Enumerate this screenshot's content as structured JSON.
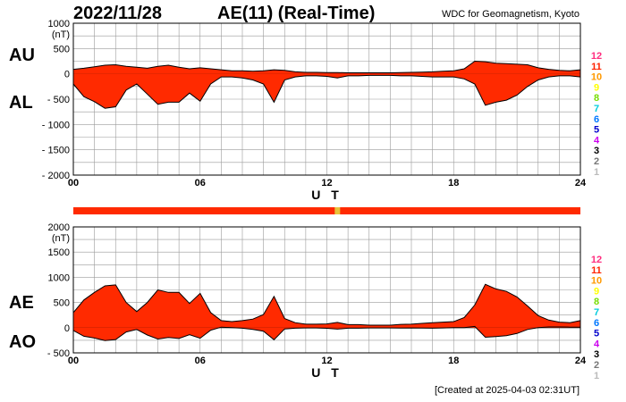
{
  "header": {
    "date": "2022/11/28",
    "index_name": "AE(11) (Real-Time)",
    "source": "WDC for Geomagnetism, Kyoto"
  },
  "footer": {
    "created": "[Created at 2025-04-03 02:31UT]"
  },
  "labels": {
    "au": "AU",
    "al": "AL",
    "ae": "AE",
    "ao": "AO"
  },
  "colors": {
    "fill": "#ff2a00",
    "outline": "#000000",
    "grid": "#9a9a9a",
    "status_bar": "#ff2a00",
    "status_marker": "#e8c23a"
  },
  "station_levels": [
    {
      "label": "12",
      "color": "#ff2d7f"
    },
    {
      "label": "11",
      "color": "#ff2200"
    },
    {
      "label": "10",
      "color": "#ff9900"
    },
    {
      "label": "9",
      "color": "#ffff00"
    },
    {
      "label": "8",
      "color": "#77dd00"
    },
    {
      "label": "7",
      "color": "#00ccdd"
    },
    {
      "label": "6",
      "color": "#0077ff"
    },
    {
      "label": "5",
      "color": "#0000cc"
    },
    {
      "label": "4",
      "color": "#cc00ee"
    },
    {
      "label": "3",
      "color": "#000000"
    },
    {
      "label": "2",
      "color": "#777777"
    },
    {
      "label": "1",
      "color": "#bbbbbb"
    }
  ],
  "chart_data": [
    {
      "type": "area",
      "panel": "AU/AL",
      "x_unit": "UT hours",
      "xlim": [
        0,
        24
      ],
      "x_ticks": [
        "00",
        "06",
        "12",
        "18",
        "24"
      ],
      "xlabel": "U T",
      "ylim": [
        -2000,
        1000
      ],
      "y_ticks": [
        "1000",
        "500",
        "0",
        "- 500",
        "- 1000",
        "- 1500",
        "- 2000"
      ],
      "y_unit_label": "(nT)",
      "grid": true,
      "series": [
        {
          "name": "AU",
          "x": [
            0,
            0.5,
            1,
            1.5,
            2,
            2.5,
            3,
            3.5,
            4,
            4.5,
            5,
            5.5,
            6,
            6.5,
            7,
            7.5,
            8,
            8.5,
            9,
            9.5,
            10,
            10.5,
            11,
            11.5,
            12,
            12.5,
            13,
            13.5,
            14,
            14.5,
            15,
            15.5,
            16,
            16.5,
            17,
            17.5,
            18,
            18.5,
            19,
            19.5,
            20,
            20.5,
            21,
            21.5,
            22,
            22.5,
            23,
            23.5,
            24
          ],
          "values": [
            90,
            110,
            140,
            170,
            180,
            150,
            130,
            110,
            150,
            170,
            130,
            100,
            120,
            100,
            80,
            60,
            60,
            50,
            60,
            80,
            70,
            40,
            30,
            30,
            25,
            25,
            20,
            20,
            20,
            20,
            20,
            25,
            30,
            35,
            40,
            50,
            60,
            100,
            250,
            240,
            210,
            200,
            190,
            180,
            120,
            90,
            70,
            60,
            80
          ]
        },
        {
          "name": "AL",
          "x": [
            0,
            0.5,
            1,
            1.5,
            2,
            2.5,
            3,
            3.5,
            4,
            4.5,
            5,
            5.5,
            6,
            6.5,
            7,
            7.5,
            8,
            8.5,
            9,
            9.5,
            10,
            10.5,
            11,
            11.5,
            12,
            12.5,
            13,
            13.5,
            14,
            14.5,
            15,
            15.5,
            16,
            16.5,
            17,
            17.5,
            18,
            18.5,
            19,
            19.5,
            20,
            20.5,
            21,
            21.5,
            22,
            22.5,
            23,
            23.5,
            24
          ],
          "values": [
            -200,
            -450,
            -550,
            -680,
            -650,
            -320,
            -200,
            -400,
            -600,
            -560,
            -560,
            -380,
            -540,
            -200,
            -60,
            -60,
            -80,
            -120,
            -200,
            -560,
            -120,
            -60,
            -40,
            -40,
            -50,
            -80,
            -40,
            -40,
            -30,
            -30,
            -30,
            -40,
            -40,
            -50,
            -60,
            -60,
            -60,
            -100,
            -200,
            -620,
            -560,
            -520,
            -420,
            -250,
            -120,
            -60,
            -40,
            -40,
            -60
          ]
        }
      ]
    },
    {
      "type": "area",
      "panel": "AE/AO",
      "x_unit": "UT hours",
      "xlim": [
        0,
        24
      ],
      "x_ticks": [
        "00",
        "06",
        "12",
        "18",
        "24"
      ],
      "xlabel": "U T",
      "ylim": [
        -500,
        2000
      ],
      "y_ticks": [
        "2000",
        "1500",
        "1000",
        "500",
        "0",
        "- 500"
      ],
      "y_unit_label": "(nT)",
      "grid": true,
      "series": [
        {
          "name": "AE",
          "x": [
            0,
            0.5,
            1,
            1.5,
            2,
            2.5,
            3,
            3.5,
            4,
            4.5,
            5,
            5.5,
            6,
            6.5,
            7,
            7.5,
            8,
            8.5,
            9,
            9.5,
            10,
            10.5,
            11,
            11.5,
            12,
            12.5,
            13,
            13.5,
            14,
            14.5,
            15,
            15.5,
            16,
            16.5,
            17,
            17.5,
            18,
            18.5,
            19,
            19.5,
            20,
            20.5,
            21,
            21.5,
            22,
            22.5,
            23,
            23.5,
            24
          ],
          "values": [
            300,
            550,
            700,
            830,
            850,
            500,
            320,
            500,
            750,
            700,
            700,
            480,
            680,
            300,
            140,
            120,
            140,
            170,
            260,
            620,
            180,
            100,
            70,
            70,
            75,
            105,
            60,
            60,
            50,
            50,
            50,
            65,
            70,
            85,
            100,
            110,
            120,
            200,
            450,
            860,
            770,
            720,
            610,
            430,
            240,
            150,
            110,
            100,
            140
          ]
        },
        {
          "name": "AO",
          "x": [
            0,
            0.5,
            1,
            1.5,
            2,
            2.5,
            3,
            3.5,
            4,
            4.5,
            5,
            5.5,
            6,
            6.5,
            7,
            7.5,
            8,
            8.5,
            9,
            9.5,
            10,
            10.5,
            11,
            11.5,
            12,
            12.5,
            13,
            13.5,
            14,
            14.5,
            15,
            15.5,
            16,
            16.5,
            17,
            17.5,
            18,
            18.5,
            19,
            19.5,
            20,
            20.5,
            21,
            21.5,
            22,
            22.5,
            23,
            23.5,
            24
          ],
          "values": [
            -55,
            -170,
            -205,
            -255,
            -235,
            -85,
            -35,
            -145,
            -225,
            -195,
            -215,
            -140,
            -210,
            -50,
            10,
            0,
            -10,
            -35,
            -70,
            -240,
            -25,
            -10,
            -5,
            -5,
            -12,
            -28,
            -10,
            -10,
            -5,
            -5,
            -5,
            -8,
            -5,
            -8,
            -10,
            -5,
            0,
            0,
            25,
            -190,
            -175,
            -160,
            -115,
            -35,
            0,
            15,
            15,
            10,
            10
          ]
        }
      ]
    }
  ]
}
